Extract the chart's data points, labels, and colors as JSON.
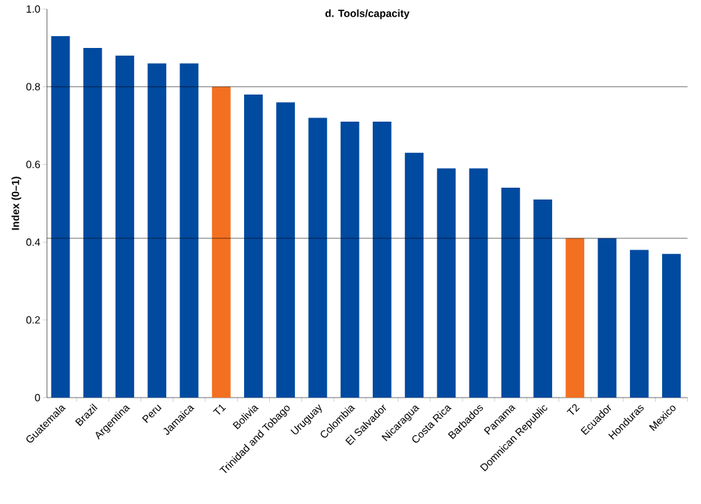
{
  "chart_data": {
    "type": "bar",
    "title": "d. Tools/capacity",
    "ylabel": "Index (0–1)",
    "categories": [
      "Guatemala",
      "Brazil",
      "Argentina",
      "Peru",
      "Jamaica",
      "T1",
      "Bolivia",
      "Trinidad and Tobago",
      "Uruguay",
      "Colombia",
      "El Salvador",
      "Nicaragua",
      "Costa Rica",
      "Barbados",
      "Panama",
      "Domnican Republic",
      "T2",
      "Ecuador",
      "Honduras",
      "Mexico"
    ],
    "values": [
      0.93,
      0.9,
      0.88,
      0.86,
      0.86,
      0.8,
      0.78,
      0.76,
      0.72,
      0.71,
      0.71,
      0.63,
      0.59,
      0.59,
      0.54,
      0.51,
      0.41,
      0.41,
      0.38,
      0.37
    ],
    "colors": [
      "#004aa0",
      "#004aa0",
      "#004aa0",
      "#004aa0",
      "#004aa0",
      "#f37021",
      "#004aa0",
      "#004aa0",
      "#004aa0",
      "#004aa0",
      "#004aa0",
      "#004aa0",
      "#004aa0",
      "#004aa0",
      "#004aa0",
      "#004aa0",
      "#f37021",
      "#004aa0",
      "#004aa0",
      "#004aa0"
    ],
    "ylim": [
      0,
      1.0
    ],
    "yticks": [
      0,
      0.2,
      0.4,
      0.6,
      0.8,
      {
        "value": 1.0,
        "label": "1.0"
      }
    ],
    "ref_lines": [
      {
        "axis": "y",
        "value": 0.8,
        "color": "#000000"
      },
      {
        "axis": "y",
        "value": 0.41,
        "color": "#000000"
      }
    ]
  }
}
